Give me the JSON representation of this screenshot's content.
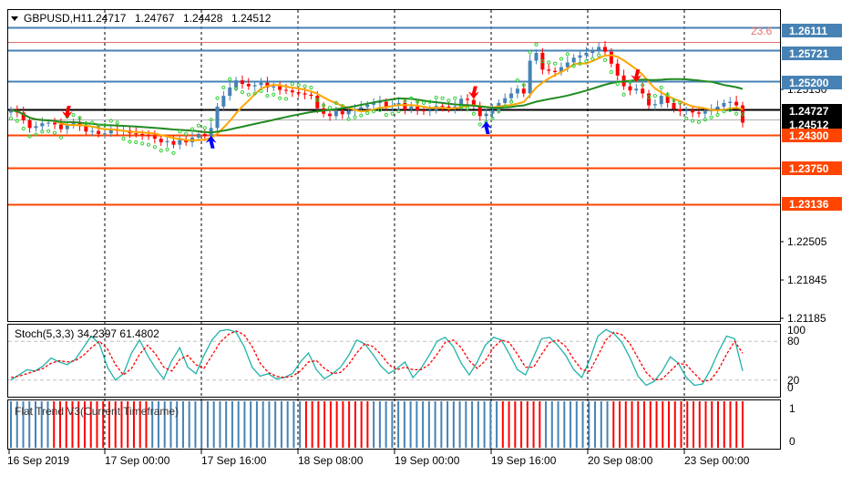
{
  "chart_data": [
    {
      "type": "candlestick",
      "title": "GBPUSD,H1",
      "ohlc_header": [
        "1.24717",
        "1.24767",
        "1.24428",
        "1.24512"
      ],
      "y_ticks": [
        "1.26111",
        "1.25721",
        "1.25200",
        "1.25130",
        "1.24727",
        "1.24512",
        "1.24300",
        "1.23750",
        "1.23136",
        "1.22505",
        "1.21845",
        "1.21185"
      ],
      "ylim": [
        1.2118,
        1.264
      ],
      "x_ticks": [
        "16 Sep 2019",
        "17 Sep 00:00",
        "17 Sep 16:00",
        "18 Sep 08:00",
        "19 Sep 00:00",
        "19 Sep 16:00",
        "20 Sep 08:00",
        "23 Sep 00:00"
      ],
      "fib_label": "23.6",
      "price_labels": [
        {
          "value": "1.26111",
          "color": "#4682b4"
        },
        {
          "value": "1.25721",
          "color": "#4682b4"
        },
        {
          "value": "1.25200",
          "color": "#4682b4"
        },
        {
          "value": "1.24727",
          "color": "#000000"
        },
        {
          "value": "1.24512",
          "color": "#000000"
        },
        {
          "value": "1.24300",
          "color": "#ff4500"
        },
        {
          "value": "1.23750",
          "color": "#ff4500"
        },
        {
          "value": "1.23136",
          "color": "#ff4500"
        }
      ],
      "horizontal_lines": [
        {
          "price": 1.26111,
          "color": "#4682b4"
        },
        {
          "price": 1.25721,
          "color": "#4682b4"
        },
        {
          "price": 1.252,
          "color": "#4682b4"
        },
        {
          "price": 1.24727,
          "color": "#000000"
        },
        {
          "price": 1.243,
          "color": "#ff4500"
        },
        {
          "price": 1.2375,
          "color": "#ff4500"
        },
        {
          "price": 1.23136,
          "color": "#ff4500"
        }
      ],
      "fib_line_price": 1.2587,
      "trend_line_price": 1.2456,
      "series": [
        {
          "name": "close",
          "values": [
            1.2472,
            1.2468,
            1.2455,
            1.2442,
            1.2445,
            1.245,
            1.2451,
            1.2448,
            1.244,
            1.2447,
            1.245,
            1.2445,
            1.2436,
            1.2437,
            1.2432,
            1.2433,
            1.244,
            1.2437,
            1.2438,
            1.2433,
            1.2432,
            1.243,
            1.2428,
            1.2424,
            1.2418,
            1.242,
            1.2414,
            1.2422,
            1.2418,
            1.2426,
            1.2432,
            1.2428,
            1.2442,
            1.2478,
            1.2496,
            1.251,
            1.2522,
            1.2516,
            1.2512,
            1.2514,
            1.2518,
            1.251,
            1.2512,
            1.2506,
            1.2505,
            1.2502,
            1.25,
            1.2498,
            1.2496,
            1.2475,
            1.2466,
            1.2462,
            1.247,
            1.2465,
            1.2471,
            1.2474,
            1.2477,
            1.2481,
            1.2484,
            1.2486,
            1.2478,
            1.248,
            1.2484,
            1.2473,
            1.2478,
            1.2472,
            1.247,
            1.2472,
            1.2479,
            1.2478,
            1.2474,
            1.2478,
            1.2491,
            1.2489,
            1.248,
            1.2462,
            1.2466,
            1.2472,
            1.2484,
            1.2492,
            1.25,
            1.2508,
            1.25,
            1.2555,
            1.2568,
            1.254,
            1.2538,
            1.2536,
            1.2544,
            1.2552,
            1.256,
            1.2564,
            1.2568,
            1.2572,
            1.2578,
            1.257,
            1.255,
            1.253,
            1.2512,
            1.2505,
            1.2508,
            1.25,
            1.248,
            1.2482,
            1.2496,
            1.2484,
            1.2474,
            1.247,
            1.2472,
            1.2468,
            1.2466,
            1.247,
            1.2474,
            1.2478,
            1.2484,
            1.2486,
            1.248,
            1.2451
          ]
        }
      ],
      "moving_averages": [
        "orange",
        "green"
      ]
    },
    {
      "type": "line",
      "title": "Stoch(5,3,3) 34.2397 61.4802",
      "y_ticks": [
        "100",
        "80",
        "20",
        "0"
      ],
      "ylim": [
        0,
        100
      ],
      "series": [
        {
          "name": "main",
          "values": [
            20,
            28,
            36,
            34,
            42,
            54,
            48,
            44,
            52,
            70,
            88,
            76,
            40,
            20,
            30,
            62,
            82,
            58,
            38,
            22,
            50,
            70,
            40,
            30,
            58,
            82,
            96,
            98,
            94,
            72,
            40,
            26,
            30,
            22,
            24,
            30,
            48,
            62,
            36,
            22,
            30,
            40,
            58,
            82,
            76,
            60,
            42,
            30,
            38,
            48,
            24,
            38,
            58,
            80,
            86,
            72,
            46,
            28,
            48,
            74,
            86,
            82,
            60,
            36,
            28,
            56,
            84,
            86,
            74,
            58,
            36,
            24,
            52,
            88,
            98,
            92,
            78,
            54,
            26,
            12,
            18,
            34,
            56,
            46,
            24,
            12,
            14,
            36,
            64,
            88,
            84,
            34
          ]
        },
        {
          "name": "signal",
          "values": [
            24,
            26,
            30,
            34,
            38,
            46,
            50,
            48,
            50,
            58,
            70,
            80,
            68,
            44,
            28,
            38,
            60,
            74,
            60,
            40,
            34,
            52,
            58,
            44,
            38,
            58,
            78,
            90,
            96,
            90,
            72,
            46,
            32,
            26,
            24,
            26,
            34,
            48,
            50,
            38,
            30,
            32,
            44,
            62,
            76,
            72,
            60,
            44,
            36,
            40,
            36,
            36,
            44,
            60,
            78,
            82,
            70,
            50,
            38,
            50,
            70,
            82,
            78,
            60,
            40,
            40,
            60,
            78,
            82,
            72,
            52,
            36,
            34,
            58,
            82,
            94,
            90,
            76,
            54,
            32,
            20,
            22,
            34,
            46,
            44,
            30,
            18,
            20,
            36,
            60,
            80,
            61.48
          ]
        }
      ],
      "levels": [
        80,
        20
      ]
    },
    {
      "type": "histogram",
      "title": "Flat Trend V3(Current Timeframe)",
      "y_ticks": [
        "1",
        "0"
      ],
      "ylim": [
        0,
        1
      ],
      "bar_colors": [
        "#4682b4",
        "#ff0000"
      ],
      "values": [
        1,
        1,
        1,
        1,
        1,
        1,
        1,
        0,
        0,
        0,
        0,
        0,
        0,
        0,
        0,
        0,
        0,
        0,
        0,
        0,
        0,
        0,
        0,
        1,
        1,
        1,
        1,
        1,
        1,
        1,
        1,
        1,
        1,
        1,
        1,
        1,
        1,
        1,
        1,
        1,
        1,
        1,
        1,
        1,
        1,
        1,
        1,
        1,
        0,
        0,
        0,
        0,
        0,
        0,
        0,
        0,
        0,
        0,
        0,
        1,
        1,
        1,
        1,
        1,
        1,
        1,
        1,
        1,
        1,
        1,
        1,
        1,
        1,
        1,
        1,
        1,
        1,
        1,
        1,
        1,
        0,
        0,
        0,
        0,
        0,
        0,
        0,
        1,
        1,
        1,
        1,
        1,
        1,
        1,
        1,
        1,
        1,
        1,
        0,
        0,
        0,
        0,
        0,
        0,
        0,
        0,
        0,
        0,
        0,
        0,
        0,
        0,
        0,
        0,
        0,
        0,
        0,
        0,
        0,
        0
      ]
    }
  ]
}
